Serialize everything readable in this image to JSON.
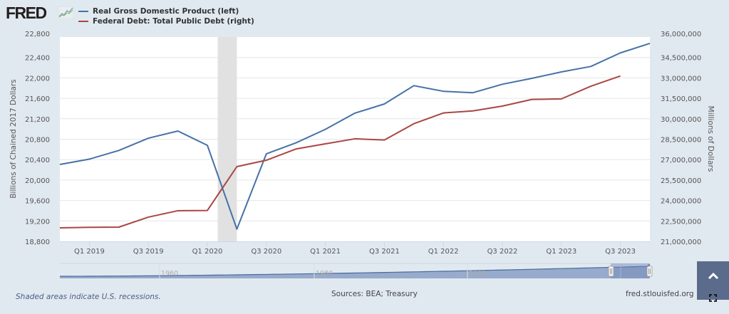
{
  "header": {
    "logo_text": "FRED",
    "logo_icon": "fred-graph-icon",
    "legend": [
      {
        "label": "Real Gross Domestic Product (left)",
        "color": "#4572a7"
      },
      {
        "label": "Federal Debt: Total Public Debt (right)",
        "color": "#aa4643"
      }
    ]
  },
  "chart_data": {
    "type": "line",
    "title": "",
    "xlabel": "",
    "x": [
      "Q4 2018",
      "Q1 2019",
      "Q2 2019",
      "Q3 2019",
      "Q4 2019",
      "Q1 2020",
      "Q2 2020",
      "Q3 2020",
      "Q4 2020",
      "Q1 2021",
      "Q2 2021",
      "Q3 2021",
      "Q4 2021",
      "Q1 2022",
      "Q2 2022",
      "Q3 2022",
      "Q4 2022",
      "Q1 2023",
      "Q2 2023",
      "Q3 2023",
      "Q4 2023"
    ],
    "x_tick_labels": [
      "Q1 2019",
      "Q3 2019",
      "Q1 2020",
      "Q3 2020",
      "Q1 2021",
      "Q3 2021",
      "Q1 2022",
      "Q3 2022",
      "Q1 2023",
      "Q3 2023"
    ],
    "series": [
      {
        "name": "Real Gross Domestic Product (left)",
        "axis": "left",
        "color": "#4572a7",
        "values": [
          20305,
          20410,
          20580,
          20820,
          20960,
          20680,
          19040,
          20514,
          20728,
          20993,
          21310,
          21490,
          21848,
          21738,
          21710,
          21876,
          21992,
          22117,
          22224,
          22490,
          22675
        ]
      },
      {
        "name": "Federal Debt: Total Public Debt (right)",
        "axis": "right",
        "color": "#aa4643",
        "values": [
          21990000,
          22030000,
          22045000,
          22780000,
          23250000,
          23270000,
          26488000,
          26958000,
          27779000,
          28160000,
          28530000,
          28440000,
          29640000,
          30425000,
          30580000,
          30930000,
          31420000,
          31460000,
          32390000,
          33140000,
          null
        ]
      }
    ],
    "left_axis": {
      "label": "Billions of Chained 2017 Dollars",
      "ylim": [
        18800,
        22800
      ],
      "ticks": [
        "22,800",
        "22,400",
        "22,000",
        "21,600",
        "21,200",
        "20,800",
        "20,400",
        "20,000",
        "19,600",
        "19,200",
        "18,800"
      ]
    },
    "right_axis": {
      "label": "Millions of Dollars",
      "ylim": [
        21000000,
        36000000
      ],
      "ticks": [
        "36,000,000",
        "34,500,000",
        "33,000,000",
        "31,500,000",
        "30,000,000",
        "28,500,000",
        "27,000,000",
        "25,500,000",
        "24,000,000",
        "22,500,000",
        "21,000,000"
      ]
    },
    "recession": {
      "start_quarter_index": 5.35,
      "end_quarter_index": 6.0
    },
    "grid": true,
    "legend_position": "top-left",
    "navigator": {
      "labels": [
        "1960",
        "1980",
        "2000",
        "2020"
      ],
      "selected_range": "2018-2023"
    }
  },
  "footer": {
    "note": "Shaded areas indicate U.S. recessions.",
    "sources": "Sources: BEA; Treasury",
    "url": "fred.stlouisfed.org"
  },
  "controls": {
    "scroll_top_glyph": "^",
    "fullscreen_icon": "fullscreen-icon"
  }
}
